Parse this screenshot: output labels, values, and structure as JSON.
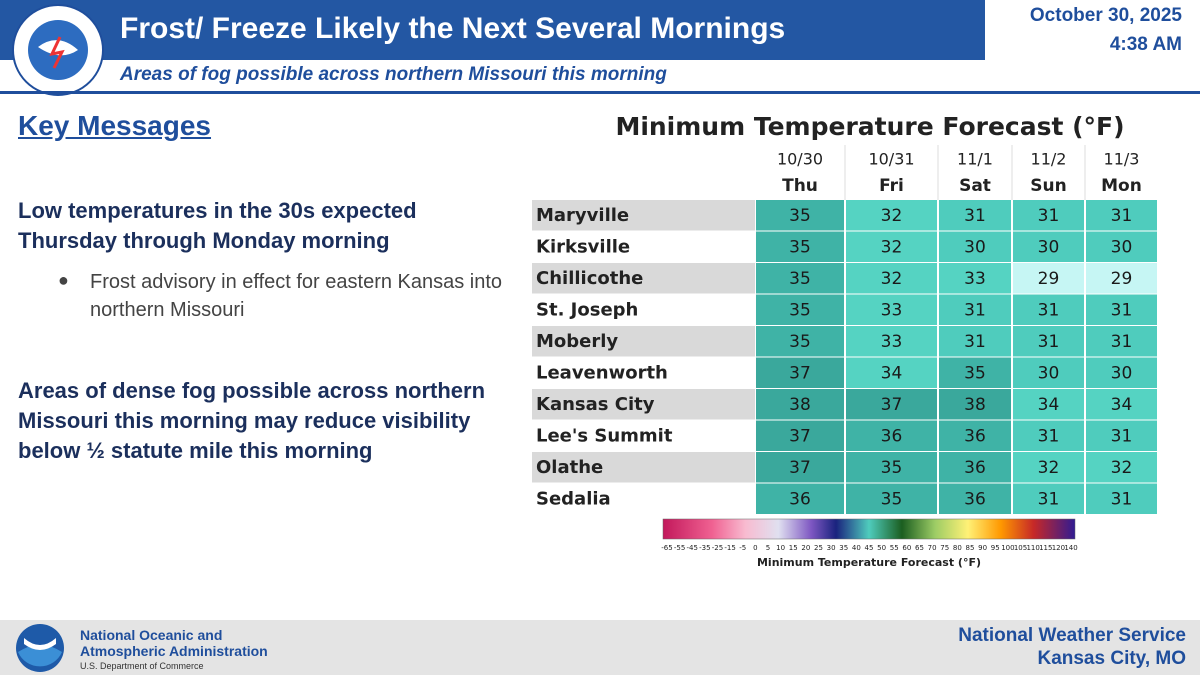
{
  "header": {
    "title": "Frost/ Freeze Likely the Next Several Mornings",
    "date": "October 30, 2025",
    "time": "4:38 AM",
    "subtitle": "Areas of fog possible across northern Missouri this morning"
  },
  "key_messages": {
    "heading": "Key Messages",
    "messages": [
      "Low temperatures in the 30s expected Thursday through Monday morning",
      "Areas of dense fog possible across northern Missouri this morning may reduce visibility below ½ statute mile this morning"
    ],
    "bullet": "Frost advisory in effect for eastern Kansas into northern Missouri"
  },
  "table": {
    "title": "Minimum Temperature Forecast (°F)",
    "dates": [
      "10/30",
      "10/31",
      "11/1",
      "11/2",
      "11/3"
    ],
    "days": [
      "Thu",
      "Fri",
      "Sat",
      "Sun",
      "Mon"
    ],
    "rows": [
      {
        "city": "Maryville",
        "values": [
          35,
          32,
          31,
          31,
          31
        ],
        "colors": [
          "#3fb3a6",
          "#55d3c2",
          "#4fccbd",
          "#4fccbd",
          "#4fccbd"
        ]
      },
      {
        "city": "Kirksville",
        "values": [
          35,
          32,
          30,
          30,
          30
        ],
        "colors": [
          "#3fb3a6",
          "#55d3c2",
          "#4fccbd",
          "#4fccbd",
          "#4fccbd"
        ]
      },
      {
        "city": "Chillicothe",
        "values": [
          35,
          32,
          33,
          29,
          29
        ],
        "colors": [
          "#3fb3a6",
          "#55d3c2",
          "#55d3c2",
          "#c6f6f4",
          "#c6f6f4"
        ]
      },
      {
        "city": "St. Joseph",
        "values": [
          35,
          33,
          31,
          31,
          31
        ],
        "colors": [
          "#3fb3a6",
          "#55d3c2",
          "#4fccbd",
          "#4fccbd",
          "#4fccbd"
        ]
      },
      {
        "city": "Moberly",
        "values": [
          35,
          33,
          31,
          31,
          31
        ],
        "colors": [
          "#3fb3a6",
          "#55d3c2",
          "#4fccbd",
          "#4fccbd",
          "#4fccbd"
        ]
      },
      {
        "city": "Leavenworth",
        "values": [
          37,
          34,
          35,
          30,
          30
        ],
        "colors": [
          "#3aa89c",
          "#55d3c2",
          "#3fb3a6",
          "#4fccbd",
          "#4fccbd"
        ]
      },
      {
        "city": "Kansas City",
        "values": [
          38,
          37,
          38,
          34,
          34
        ],
        "colors": [
          "#3aa89c",
          "#3aa89c",
          "#3aa89c",
          "#55d3c2",
          "#55d3c2"
        ]
      },
      {
        "city": "Lee's Summit",
        "values": [
          37,
          36,
          36,
          31,
          31
        ],
        "colors": [
          "#3aa89c",
          "#3fb3a6",
          "#3fb3a6",
          "#4fccbd",
          "#4fccbd"
        ]
      },
      {
        "city": "Olathe",
        "values": [
          37,
          35,
          36,
          32,
          32
        ],
        "colors": [
          "#3aa89c",
          "#3fb3a6",
          "#3fb3a6",
          "#55d3c2",
          "#55d3c2"
        ]
      },
      {
        "city": "Sedalia",
        "values": [
          36,
          35,
          36,
          31,
          31
        ],
        "colors": [
          "#3fb3a6",
          "#3fb3a6",
          "#3fb3a6",
          "#4fccbd",
          "#4fccbd"
        ]
      }
    ],
    "legend": {
      "label": "Minimum Temperature Forecast (°F)",
      "ticks": [
        "-65",
        "-55",
        "-45",
        "-35",
        "-25",
        "-15",
        "-5",
        "0",
        "5",
        "10",
        "15",
        "20",
        "25",
        "30",
        "35",
        "40",
        "45",
        "50",
        "55",
        "60",
        "65",
        "70",
        "75",
        "80",
        "85",
        "90",
        "95",
        "100",
        "105",
        "110",
        "115",
        "120",
        "140"
      ]
    }
  },
  "footer": {
    "org_line1": "National Oceanic and",
    "org_line2": "Atmospheric Administration",
    "dept": "U.S. Department of Commerce",
    "office": "National Weather Service",
    "location": "Kansas City, MO"
  }
}
